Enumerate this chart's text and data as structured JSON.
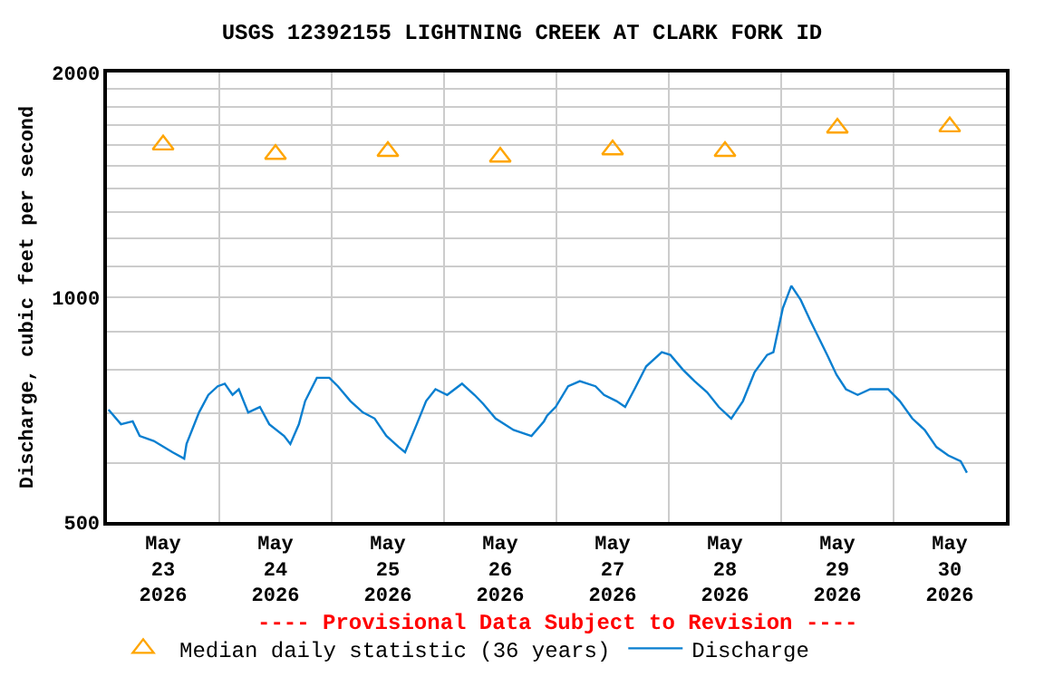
{
  "chart_data": {
    "type": "line",
    "title": "USGS 12392155 LIGHTNING CREEK AT CLARK FORK ID",
    "subtitle": "---- Provisional Data Subject to Revision ----",
    "ylabel": "Discharge, cubic feet per second",
    "log": true,
    "grid": true,
    "legend": "bottom",
    "xlim": [
      "2026-05-23T00:00",
      "2026-05-31T00:00"
    ],
    "xticks": [
      {
        "value": "2026-05-23T12:00",
        "label": "May\n23\n2026"
      },
      {
        "value": "2026-05-24T00:00",
        "label": null
      },
      {
        "value": "2026-05-24T12:00",
        "label": "May\n24\n2026"
      },
      {
        "value": "2026-05-25T00:00",
        "label": null
      },
      {
        "value": "2026-05-25T12:00",
        "label": "May\n25\n2026"
      },
      {
        "value": "2026-05-26T00:00",
        "label": null
      },
      {
        "value": "2026-05-26T12:00",
        "label": "May\n26\n2026"
      },
      {
        "value": "2026-05-27T00:00",
        "label": null
      },
      {
        "value": "2026-05-27T12:00",
        "label": "May\n27\n2026"
      },
      {
        "value": "2026-05-28T00:00",
        "label": null
      },
      {
        "value": "2026-05-28T12:00",
        "label": "May\n28\n2026"
      },
      {
        "value": "2026-05-29T00:00",
        "label": null
      },
      {
        "value": "2026-05-29T12:00",
        "label": "May\n29\n2026"
      },
      {
        "value": "2026-05-30T00:00",
        "label": null
      },
      {
        "value": "2026-05-30T12:00",
        "label": "May\n30\n2026"
      }
    ],
    "ylim": [
      500,
      2000
    ],
    "yticks": [
      500,
      {
        "value": 600,
        "label": null
      },
      {
        "value": 700,
        "label": null
      },
      {
        "value": 800,
        "label": null
      },
      {
        "value": 900,
        "label": null
      },
      1000,
      {
        "value": 1100,
        "label": null
      },
      {
        "value": 1200,
        "label": null
      },
      {
        "value": 1300,
        "label": null
      },
      {
        "value": 1400,
        "label": null
      },
      {
        "value": 1500,
        "label": null
      },
      {
        "value": 1600,
        "label": null
      },
      {
        "value": 1700,
        "label": null
      },
      {
        "value": 1800,
        "label": null
      },
      {
        "value": 1900,
        "label": null
      },
      2000
    ],
    "series": [
      {
        "name": "Median daily statistic (36 years)",
        "type": "scatter",
        "marker": "triangle",
        "color": "#ffa500",
        "x": [
          "2026-05-23T12:00",
          "2026-05-24T12:00",
          "2026-05-25T12:00",
          "2026-05-26T12:00",
          "2026-05-27T12:00",
          "2026-05-28T12:00",
          "2026-05-29T12:00",
          "2026-05-30T12:00"
        ],
        "values": [
          1600,
          1554,
          1568,
          1541,
          1576,
          1568,
          1685,
          1692
        ]
      },
      {
        "name": "Discharge",
        "color": "#0a7fd0",
        "x": [
          "2026-05-23T00:20",
          "2026-05-23T03:00",
          "2026-05-23T05:30",
          "2026-05-23T07:00",
          "2026-05-23T10:00",
          "2026-05-23T14:00",
          "2026-05-23T16:30",
          "2026-05-23T17:00",
          "2026-05-23T19:40",
          "2026-05-23T21:40",
          "2026-05-23T23:40",
          "2026-05-24T01:10",
          "2026-05-24T02:50",
          "2026-05-24T04:10",
          "2026-05-24T06:10",
          "2026-05-24T08:40",
          "2026-05-24T10:40",
          "2026-05-24T13:50",
          "2026-05-24T15:10",
          "2026-05-24T17:00",
          "2026-05-24T18:20",
          "2026-05-24T20:50",
          "2026-05-24T23:30",
          "2026-05-25T01:20",
          "2026-05-25T04:00",
          "2026-05-25T06:40",
          "2026-05-25T09:10",
          "2026-05-25T11:40",
          "2026-05-25T14:20",
          "2026-05-25T15:40",
          "2026-05-25T18:10",
          "2026-05-25T20:10",
          "2026-05-25T22:10",
          "2026-05-26T00:40",
          "2026-05-26T03:50",
          "2026-05-26T06:30",
          "2026-05-26T08:20",
          "2026-05-26T11:00",
          "2026-05-26T14:50",
          "2026-05-26T18:40",
          "2026-05-26T21:20",
          "2026-05-26T22:00",
          "2026-05-26T23:50",
          "2026-05-27T02:30",
          "2026-05-27T05:00",
          "2026-05-27T08:20",
          "2026-05-27T10:10",
          "2026-05-27T12:50",
          "2026-05-27T14:40",
          "2026-05-27T16:40",
          "2026-05-27T19:10",
          "2026-05-27T22:30",
          "2026-05-28T00:20",
          "2026-05-28T03:00",
          "2026-05-28T05:30",
          "2026-05-28T08:10",
          "2026-05-28T10:40",
          "2026-05-28T13:20",
          "2026-05-28T15:50",
          "2026-05-28T18:20",
          "2026-05-28T21:00",
          "2026-05-28T22:20",
          "2026-05-29T00:20",
          "2026-05-29T02:10",
          "2026-05-29T04:10",
          "2026-05-29T06:10",
          "2026-05-29T08:00",
          "2026-05-29T09:50",
          "2026-05-29T11:50",
          "2026-05-29T13:50",
          "2026-05-29T16:20",
          "2026-05-29T19:00",
          "2026-05-29T22:50",
          "2026-05-30T01:20",
          "2026-05-30T04:00",
          "2026-05-30T06:40",
          "2026-05-30T09:10",
          "2026-05-30T11:40",
          "2026-05-30T14:20",
          "2026-05-30T15:40"
        ],
        "values": [
          707,
          676,
          682,
          652,
          642,
          620,
          608,
          636,
          701,
          740,
          760,
          766,
          740,
          753,
          701,
          713,
          676,
          652,
          636,
          676,
          726,
          780,
          780,
          760,
          726,
          701,
          688,
          652,
          630,
          620,
          676,
          726,
          753,
          740,
          766,
          740,
          720,
          688,
          664,
          652,
          682,
          694,
          713,
          760,
          772,
          760,
          740,
          726,
          713,
          753,
          808,
          844,
          837,
          800,
          772,
          746,
          713,
          688,
          726,
          794,
          837,
          844,
          966,
          1036,
          992,
          932,
          883,
          837,
          787,
          753,
          740,
          753,
          753,
          726,
          688,
          664,
          630,
          614,
          603,
          582
        ]
      }
    ]
  }
}
